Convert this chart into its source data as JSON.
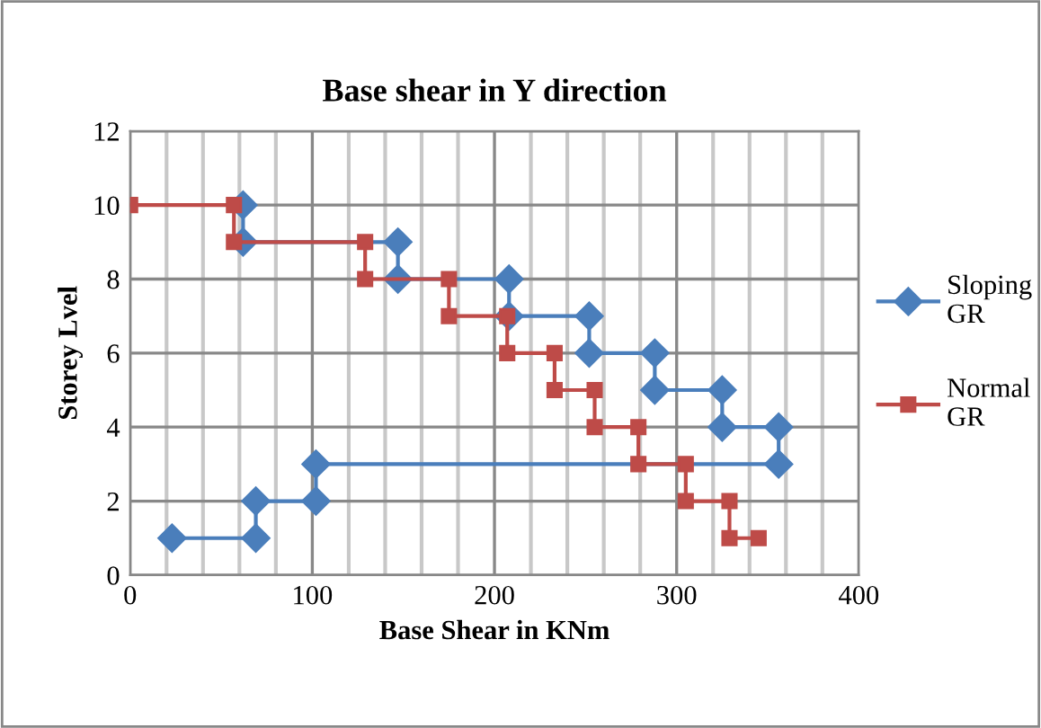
{
  "chart_data": {
    "type": "line",
    "title": "Base shear in Y direction",
    "xlabel": "Base Shear in KNm",
    "ylabel": "Storey Lvel",
    "xlim": [
      0,
      400
    ],
    "ylim": [
      0,
      12
    ],
    "xticks": [
      0,
      {
        "value": 20,
        "label": null
      },
      {
        "value": 40,
        "label": null
      },
      {
        "value": 60,
        "label": null
      },
      {
        "value": 80,
        "label": null
      },
      100,
      {
        "value": 120,
        "label": null
      },
      {
        "value": 140,
        "label": null
      },
      {
        "value": 160,
        "label": null
      },
      {
        "value": 180,
        "label": null
      },
      200,
      {
        "value": 220,
        "label": null
      },
      {
        "value": 240,
        "label": null
      },
      {
        "value": 260,
        "label": null
      },
      {
        "value": 280,
        "label": null
      },
      300,
      {
        "value": 320,
        "label": null
      },
      {
        "value": 340,
        "label": null
      },
      {
        "value": 360,
        "label": null
      },
      {
        "value": 380,
        "label": null
      },
      400
    ],
    "yticks": [
      0,
      2,
      4,
      6,
      8,
      10,
      12
    ],
    "grid": true,
    "legend": "right",
    "series": [
      {
        "name": "Sloping GR",
        "color": "#4a7ebb",
        "marker": "diamond",
        "x": [
          23,
          69,
          69,
          102,
          102,
          356,
          356,
          325,
          325,
          288,
          288,
          252,
          252,
          208,
          208,
          147,
          147,
          62,
          62
        ],
        "values": [
          1,
          1,
          2,
          2,
          3,
          3,
          4,
          4,
          5,
          5,
          6,
          6,
          7,
          7,
          8,
          8,
          9,
          9,
          10
        ]
      },
      {
        "name": "Normal GR",
        "color": "#be4b48",
        "marker": "square",
        "x": [
          0,
          57,
          57,
          129,
          129,
          175,
          175,
          207,
          207,
          233,
          233,
          255,
          255,
          279,
          279,
          305,
          305,
          329,
          329,
          345
        ],
        "values": [
          10,
          10,
          9,
          9,
          8,
          8,
          7,
          7,
          6,
          6,
          5,
          5,
          4,
          4,
          3,
          3,
          2,
          2,
          1,
          1
        ]
      }
    ]
  }
}
